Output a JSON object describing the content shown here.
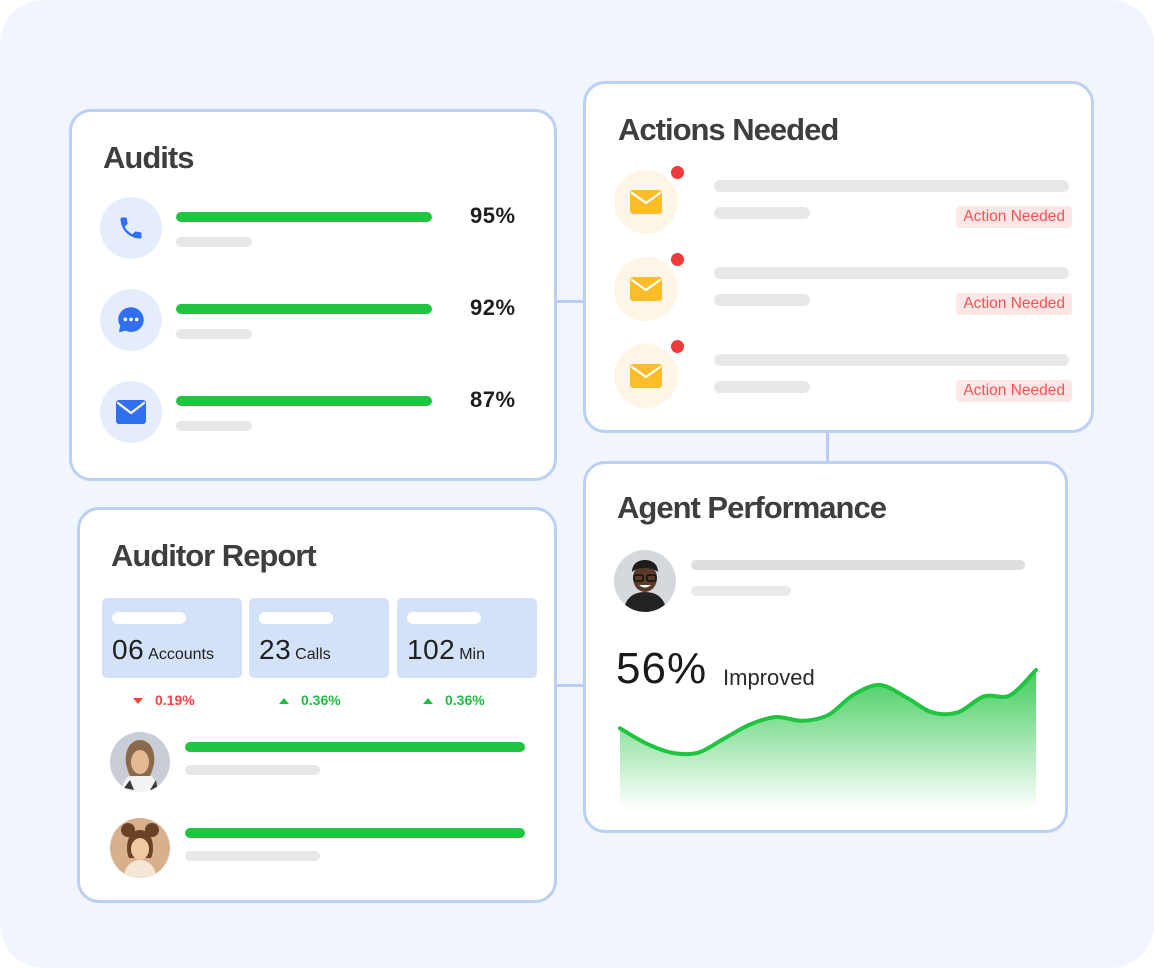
{
  "colors": {
    "background": "#f1f5fd",
    "card_border": "#bcd0f4",
    "accent_green": "#1fc43f",
    "accent_blue": "#2f6ff0",
    "action_icon_yellow": "#fbbd2c",
    "alert_red": "#f03a3a",
    "stat_box": "#d3e2f9"
  },
  "audits": {
    "title": "Audits",
    "items": [
      {
        "icon": "phone-icon",
        "percent": "95%",
        "value": 0.95
      },
      {
        "icon": "chat-bubble-icon",
        "percent": "92%",
        "value": 0.92
      },
      {
        "icon": "mail-icon",
        "percent": "87%",
        "value": 0.87
      }
    ]
  },
  "actions": {
    "title": "Actions Needed",
    "items": [
      {
        "icon": "mail-icon",
        "badge": "Action Needed"
      },
      {
        "icon": "mail-icon",
        "badge": "Action Needed"
      },
      {
        "icon": "mail-icon",
        "badge": "Action Needed"
      }
    ]
  },
  "auditor_report": {
    "title": "Auditor Report",
    "stats": [
      {
        "value": "06",
        "unit": "Accounts",
        "trend": "0.19%",
        "direction": "down"
      },
      {
        "value": "23",
        "unit": "Calls",
        "trend": "0.36%",
        "direction": "up"
      },
      {
        "value": "102",
        "unit": "Min",
        "trend": "0.36%",
        "direction": "up"
      }
    ],
    "people": [
      {
        "avatar": "avatar-woman-1"
      },
      {
        "avatar": "avatar-woman-2"
      }
    ]
  },
  "agent_performance": {
    "title": "Agent Performance",
    "avatar": "avatar-agent",
    "percent": "56%",
    "label": "Improved",
    "trend_values": [
      0.38,
      0.22,
      0.12,
      0.12,
      0.27,
      0.42,
      0.5,
      0.46,
      0.52,
      0.74,
      0.84,
      0.71,
      0.55,
      0.55,
      0.72,
      0.73,
      1.0
    ]
  }
}
